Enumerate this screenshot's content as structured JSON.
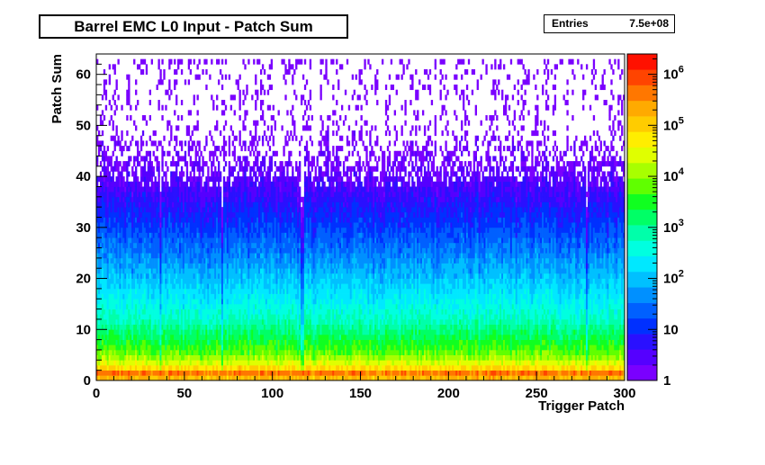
{
  "chart_data": {
    "type": "heatmap",
    "title": "Barrel EMC L0 Input - Patch Sum",
    "xlabel": "Trigger Patch",
    "ylabel": "Patch Sum",
    "xlim": [
      0,
      300
    ],
    "ylim": [
      0,
      64
    ],
    "x_ticks": [
      0,
      50,
      100,
      150,
      200,
      250,
      300
    ],
    "y_ticks": [
      0,
      10,
      20,
      30,
      40,
      50,
      60
    ],
    "z_scale": "log",
    "z_range": [
      1,
      2500000
    ],
    "z_ticks": [
      {
        "value": 1,
        "label": "1"
      },
      {
        "value": 10,
        "label": "10"
      },
      {
        "value": 100,
        "label": "10",
        "exp": "2"
      },
      {
        "value": 1000,
        "label": "10",
        "exp": "3"
      },
      {
        "value": 10000,
        "label": "10",
        "exp": "4"
      },
      {
        "value": 100000,
        "label": "10",
        "exp": "5"
      },
      {
        "value": 1000000,
        "label": "10",
        "exp": "6"
      }
    ],
    "palette": [
      "#7a00ff",
      "#5500ff",
      "#2a10ff",
      "#0030ff",
      "#0060ff",
      "#0090ff",
      "#00c0ff",
      "#00e8ff",
      "#00ffe0",
      "#00ffaa",
      "#00ff66",
      "#10ff20",
      "#60ff00",
      "#a8ff00",
      "#e0ff00",
      "#ffee00",
      "#ffcc00",
      "#ffaa00",
      "#ff7700",
      "#ff4400",
      "#ff1100"
    ],
    "density_profile": [
      {
        "y": 0,
        "z": 20000
      },
      {
        "y": 1,
        "z": 1500000
      },
      {
        "y": 2,
        "z": 150000
      },
      {
        "y": 3,
        "z": 40000
      },
      {
        "y": 5,
        "z": 8000
      },
      {
        "y": 8,
        "z": 2500
      },
      {
        "y": 12,
        "z": 600
      },
      {
        "y": 16,
        "z": 250
      },
      {
        "y": 20,
        "z": 110
      },
      {
        "y": 25,
        "z": 40
      },
      {
        "y": 30,
        "z": 15
      },
      {
        "y": 35,
        "z": 6
      },
      {
        "y": 40,
        "z": 2.5
      },
      {
        "y": 45,
        "z": 1.5
      },
      {
        "y": 50,
        "z": 1
      },
      {
        "y": 62,
        "z": 1
      }
    ],
    "overflow_row": {
      "y": 62,
      "z": 1
    }
  },
  "stats": {
    "entries_label": "Entries",
    "entries_value": "7.5e+08"
  }
}
